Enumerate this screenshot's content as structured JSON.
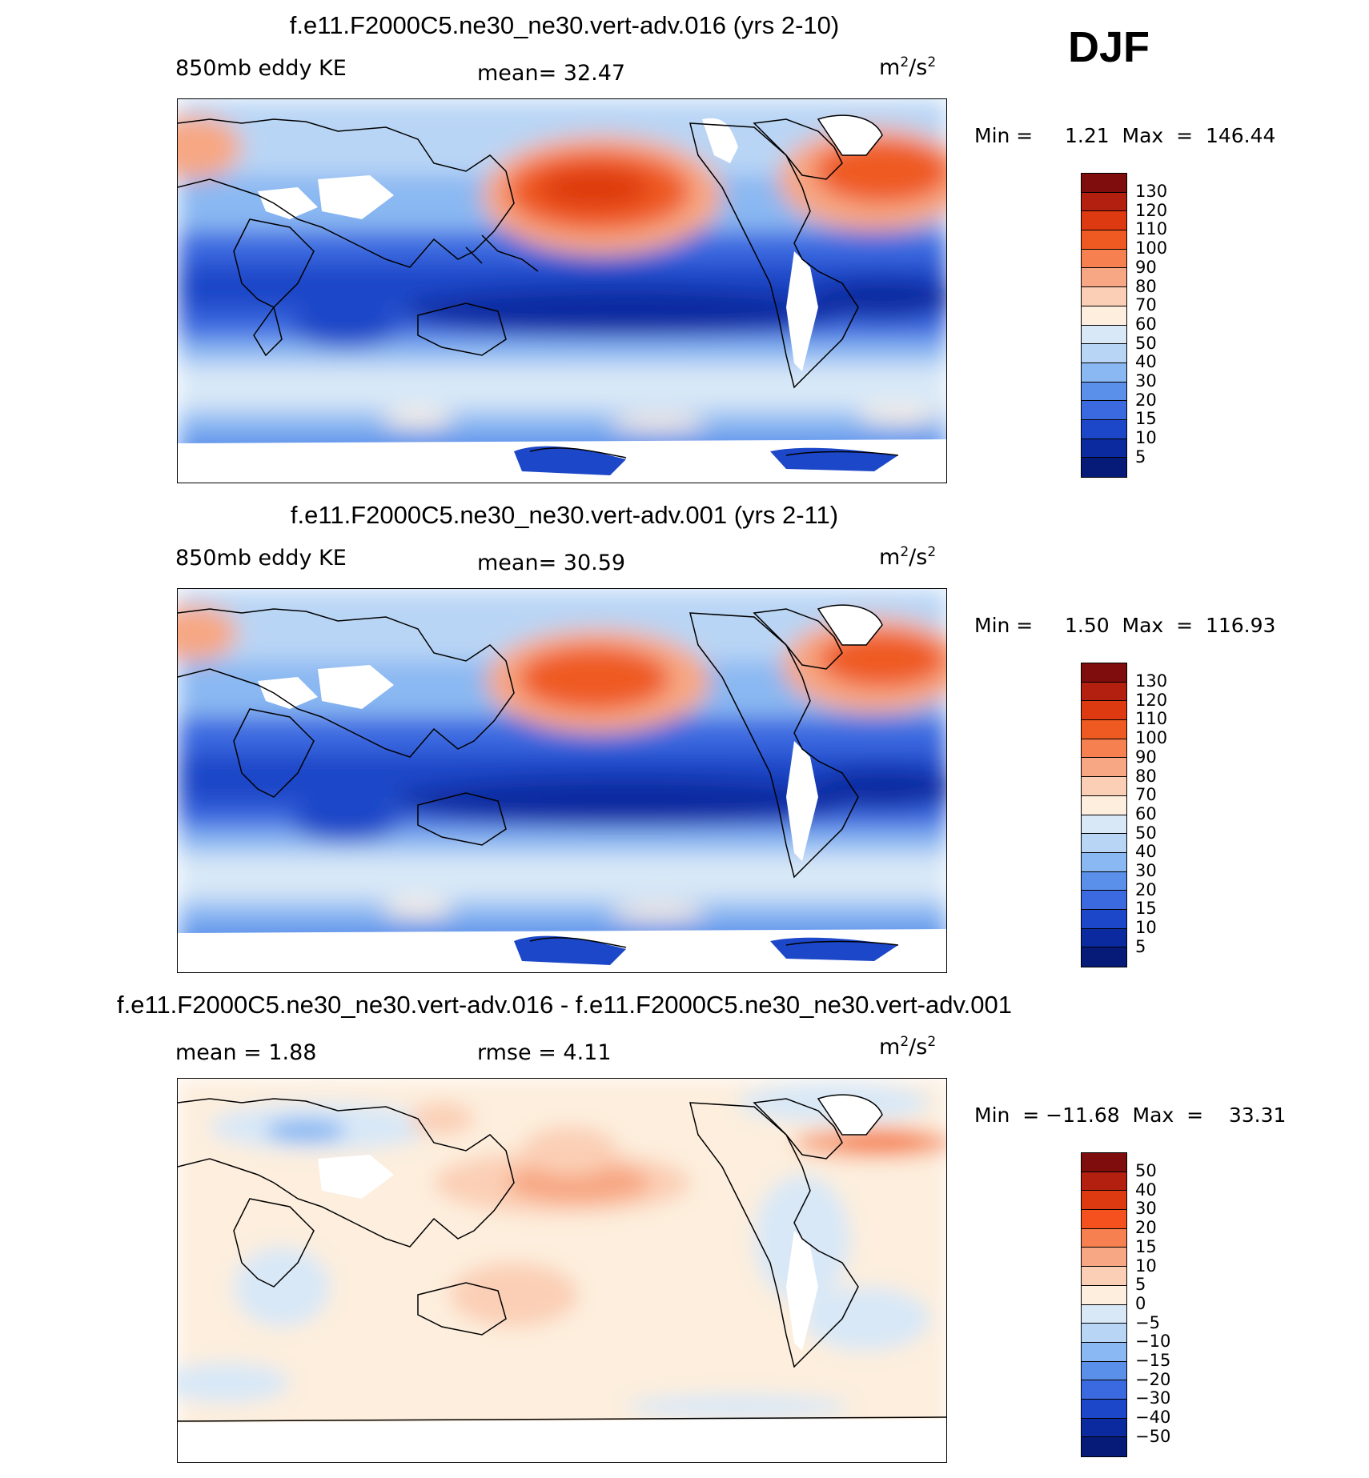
{
  "season": "DJF",
  "panels": [
    {
      "title": "f.e11.F2000C5.ne30_ne30.vert-adv.016 (yrs 2-10)",
      "left_label": "850mb eddy KE",
      "center_label": "mean=   32.47",
      "units_base": "m",
      "units_sup1": "2",
      "units_mid": "/s",
      "units_sup2": "2",
      "minmax": "Min =     1.21  Max  =  146.44",
      "colorbar_labels": [
        "130",
        "120",
        "110",
        "100",
        "90",
        "80",
        "70",
        "60",
        "50",
        "40",
        "30",
        "20",
        "15",
        "10",
        "5"
      ],
      "colorbar_colors": [
        "#7f0d0d",
        "#b3200f",
        "#de3a11",
        "#ef5a22",
        "#f6804f",
        "#f7a783",
        "#fbcfb5",
        "#fdeedd",
        "#d8e8f7",
        "#b9d5f5",
        "#8ab8f2",
        "#5b90ea",
        "#3a69e0",
        "#1c47c8",
        "#0b2aa0",
        "#061a78"
      ]
    },
    {
      "title": "f.e11.F2000C5.ne30_ne30.vert-adv.001 (yrs 2-11)",
      "left_label": "850mb eddy KE",
      "center_label": "mean=   30.59",
      "units_base": "m",
      "units_sup1": "2",
      "units_mid": "/s",
      "units_sup2": "2",
      "minmax": "Min =     1.50  Max  =  116.93",
      "colorbar_labels": [
        "130",
        "120",
        "110",
        "100",
        "90",
        "80",
        "70",
        "60",
        "50",
        "40",
        "30",
        "20",
        "15",
        "10",
        "5"
      ],
      "colorbar_colors": [
        "#7f0d0d",
        "#b3200f",
        "#de3a11",
        "#ef5a22",
        "#f6804f",
        "#f7a783",
        "#fbcfb5",
        "#fdeedd",
        "#d8e8f7",
        "#b9d5f5",
        "#8ab8f2",
        "#5b90ea",
        "#3a69e0",
        "#1c47c8",
        "#0b2aa0",
        "#061a78"
      ]
    },
    {
      "title": "f.e11.F2000C5.ne30_ne30.vert-adv.016 - f.e11.F2000C5.ne30_ne30.vert-adv.001",
      "left_label": "mean  =     1.88",
      "center_label": "rmse  =     4.11",
      "units_base": "m",
      "units_sup1": "2",
      "units_mid": "/s",
      "units_sup2": "2",
      "minmax": "Min  = −11.68  Max  =    33.31",
      "colorbar_labels": [
        "50",
        "40",
        "30",
        "20",
        "15",
        "10",
        "5",
        "0",
        "−5",
        "−10",
        "−15",
        "−20",
        "−30",
        "−40",
        "−50"
      ],
      "colorbar_colors": [
        "#7f0d0d",
        "#b3200f",
        "#de3a11",
        "#f4511e",
        "#f6804f",
        "#f7a783",
        "#fbcfb5",
        "#fdeedd",
        "#d8e8f7",
        "#b9d5f5",
        "#8ab8f2",
        "#5b90ea",
        "#3a69e0",
        "#1c47c8",
        "#0b2aa0",
        "#061a78"
      ]
    }
  ]
}
